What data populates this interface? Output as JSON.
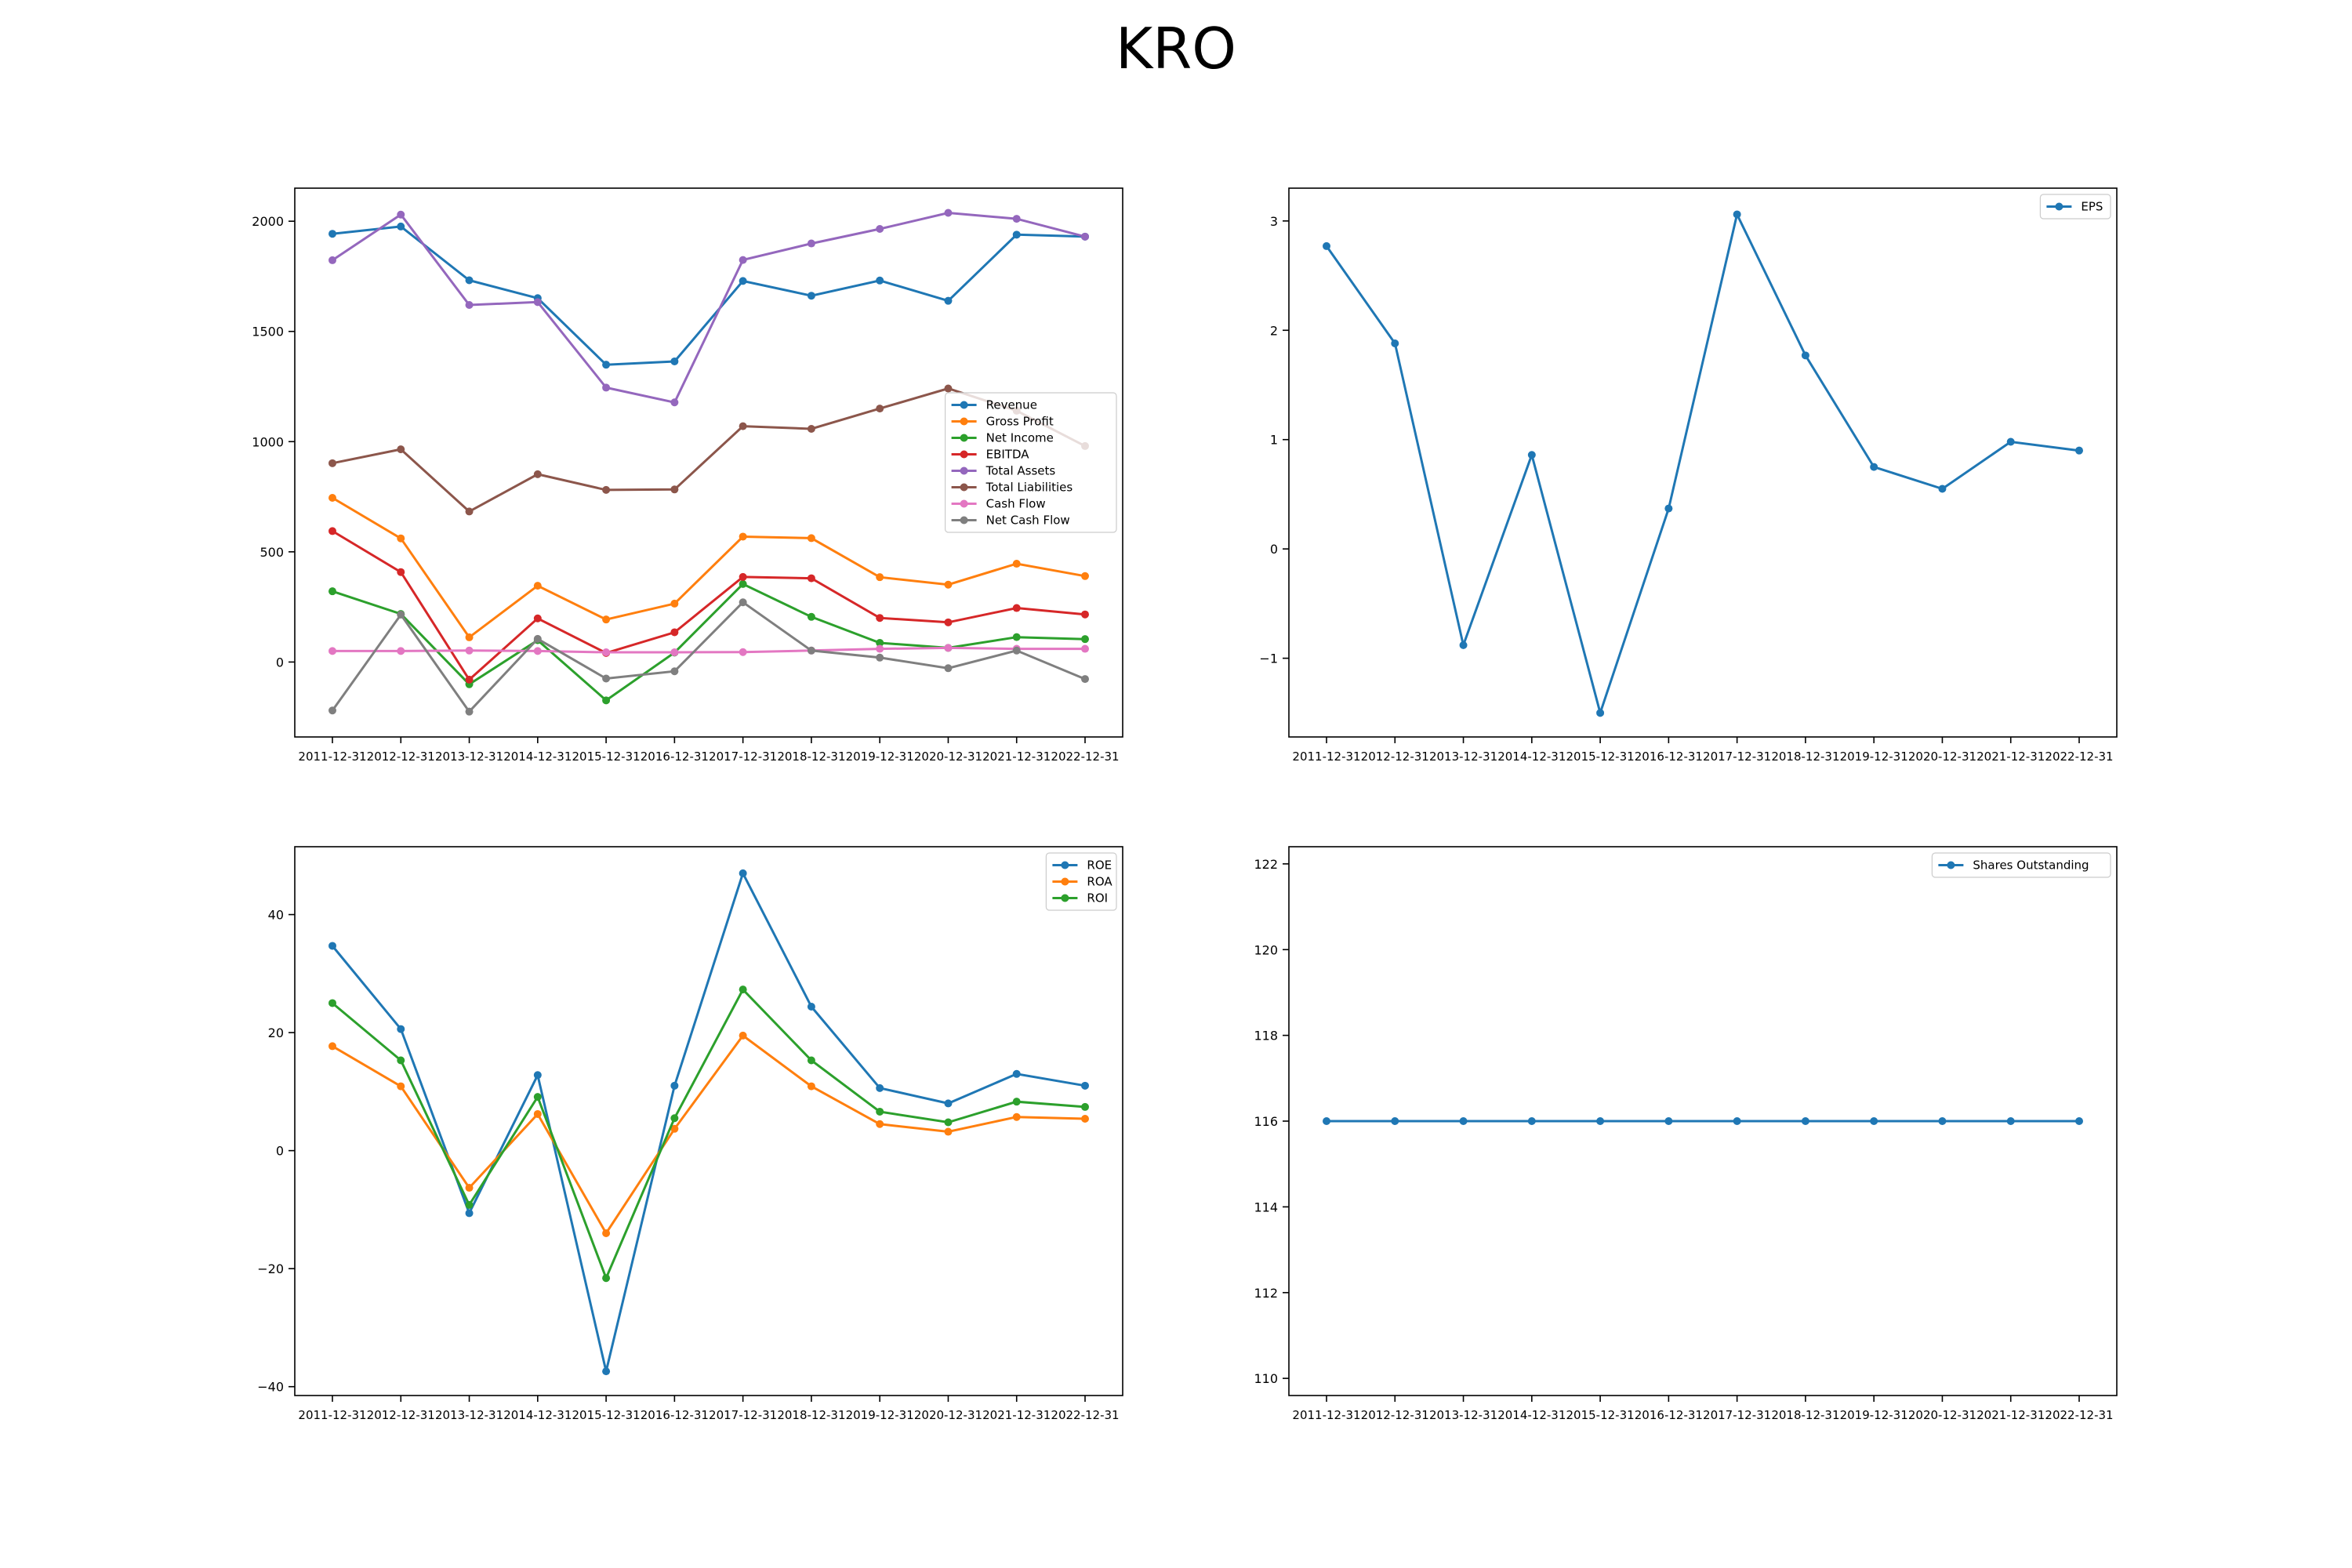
{
  "figure": {
    "title": "KRO"
  },
  "chart_data": [
    {
      "type": "line",
      "x": [
        "2011-12-31",
        "2012-12-31",
        "2013-12-31",
        "2014-12-31",
        "2015-12-31",
        "2016-12-31",
        "2017-12-31",
        "2018-12-31",
        "2019-12-31",
        "2020-12-31",
        "2021-12-31",
        "2022-12-31"
      ],
      "ylim": [
        -340,
        2150
      ],
      "yticks": [
        0,
        500,
        1000,
        1500,
        2000
      ],
      "legend": "center-right",
      "grid": false,
      "series": [
        {
          "name": "Revenue",
          "color": "#1f77b4",
          "values": [
            1943,
            1976,
            1732,
            1651,
            1349,
            1364,
            1729,
            1662,
            1731,
            1639,
            1939,
            1930
          ]
        },
        {
          "name": "Gross Profit",
          "color": "#ff7f0e",
          "values": [
            745,
            561,
            112,
            346,
            193,
            265,
            569,
            562,
            385,
            351,
            446,
            390
          ]
        },
        {
          "name": "Net Income",
          "color": "#2ca02c",
          "values": [
            321,
            218,
            -101,
            99,
            -174,
            43,
            354,
            205,
            87,
            64,
            113,
            104
          ]
        },
        {
          "name": "EBITDA",
          "color": "#d62728",
          "values": [
            594,
            408,
            -80,
            198,
            41,
            135,
            386,
            380,
            200,
            180,
            245,
            216
          ]
        },
        {
          "name": "Total Assets",
          "color": "#9467bd",
          "values": [
            1823,
            2030,
            1620,
            1633,
            1245,
            1178,
            1824,
            1899,
            1965,
            2038,
            2011,
            1930
          ]
        },
        {
          "name": "Total Liabilities",
          "color": "#8c564b",
          "values": [
            902,
            965,
            683,
            852,
            781,
            783,
            1070,
            1058,
            1150,
            1241,
            1140,
            980
          ]
        },
        {
          "name": "Cash Flow",
          "color": "#e377c2",
          "values": [
            50,
            50,
            52,
            50,
            44,
            44,
            45,
            52,
            60,
            64,
            60,
            60
          ]
        },
        {
          "name": "Net Cash Flow",
          "color": "#7f7f7f",
          "values": [
            -220,
            215,
            -225,
            105,
            -75,
            -42,
            271,
            52,
            20,
            -28,
            52,
            -77
          ]
        }
      ]
    },
    {
      "type": "line",
      "x": [
        "2011-12-31",
        "2012-12-31",
        "2013-12-31",
        "2014-12-31",
        "2015-12-31",
        "2016-12-31",
        "2017-12-31",
        "2018-12-31",
        "2019-12-31",
        "2020-12-31",
        "2021-12-31",
        "2022-12-31"
      ],
      "ylim": [
        -1.72,
        3.3
      ],
      "yticks": [
        -1,
        0,
        1,
        2,
        3
      ],
      "legend": "top-right",
      "grid": false,
      "series": [
        {
          "name": "EPS",
          "color": "#1f77b4",
          "values": [
            2.77,
            1.88,
            -0.88,
            0.86,
            -1.5,
            0.37,
            3.06,
            1.77,
            0.75,
            0.55,
            0.98,
            0.9
          ]
        }
      ]
    },
    {
      "type": "line",
      "x": [
        "2011-12-31",
        "2012-12-31",
        "2013-12-31",
        "2014-12-31",
        "2015-12-31",
        "2016-12-31",
        "2017-12-31",
        "2018-12-31",
        "2019-12-31",
        "2020-12-31",
        "2021-12-31",
        "2022-12-31"
      ],
      "ylim": [
        -41.5,
        51.5
      ],
      "yticks": [
        -40,
        -20,
        0,
        20,
        40
      ],
      "legend": "top-right",
      "grid": false,
      "series": [
        {
          "name": "ROE",
          "color": "#1f77b4",
          "values": [
            34.7,
            20.6,
            -10.6,
            12.8,
            -37.4,
            11.0,
            47.0,
            24.4,
            10.6,
            8.0,
            13.0,
            11.0
          ]
        },
        {
          "name": "ROA",
          "color": "#ff7f0e",
          "values": [
            17.7,
            10.9,
            -6.3,
            6.2,
            -14.0,
            3.7,
            19.5,
            10.9,
            4.5,
            3.2,
            5.7,
            5.4
          ]
        },
        {
          "name": "ROI",
          "color": "#2ca02c",
          "values": [
            25.0,
            15.3,
            -9.2,
            9.1,
            -21.6,
            5.5,
            27.3,
            15.3,
            6.6,
            4.8,
            8.3,
            7.4
          ]
        }
      ]
    },
    {
      "type": "line",
      "x": [
        "2011-12-31",
        "2012-12-31",
        "2013-12-31",
        "2014-12-31",
        "2015-12-31",
        "2016-12-31",
        "2017-12-31",
        "2018-12-31",
        "2019-12-31",
        "2020-12-31",
        "2021-12-31",
        "2022-12-31"
      ],
      "ylim": [
        109.6,
        122.4
      ],
      "yticks": [
        110,
        112,
        114,
        116,
        118,
        120,
        122
      ],
      "legend": "top-right",
      "grid": false,
      "series": [
        {
          "name": "Shares Outstanding",
          "color": "#1f77b4",
          "values": [
            116,
            116,
            116,
            116,
            116,
            116,
            116,
            116,
            116,
            116,
            116,
            116
          ]
        }
      ]
    }
  ]
}
